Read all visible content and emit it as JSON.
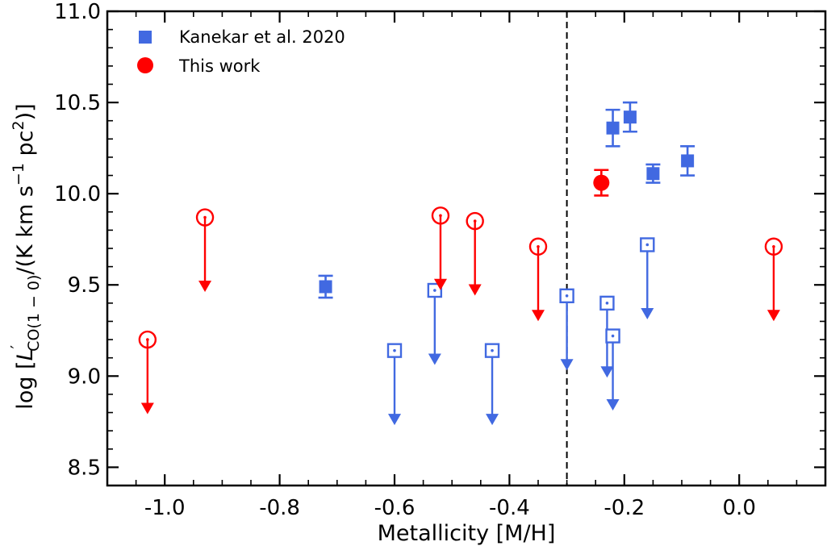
{
  "chart_data": {
    "type": "scatter",
    "xlabel": "Metallicity [M/H]",
    "ylabel_parts": {
      "prefix": "log [",
      "L": "L",
      "prime": "′",
      "sub": "CO(1 − 0)",
      "mid": "/(K km s",
      "sup1": "−1",
      "mid2": " pc",
      "sup2": "2",
      "suffix": ")]"
    },
    "xlim": [
      -1.1,
      0.15
    ],
    "ylim": [
      8.4,
      11.0
    ],
    "xticks": [
      -1.0,
      -0.8,
      -0.6,
      -0.4,
      -0.2,
      0.0
    ],
    "xtick_labels": [
      "-1.0",
      "-0.8",
      "-0.6",
      "-0.4",
      "-0.2",
      "0.0"
    ],
    "yticks": [
      8.5,
      9.0,
      9.5,
      10.0,
      10.5,
      11.0
    ],
    "ytick_labels": [
      "8.5",
      "9.0",
      "9.5",
      "10.0",
      "10.5",
      "11.0"
    ],
    "vline_x": -0.3,
    "legend": {
      "placement": "top-left",
      "entries": [
        {
          "label": "Kanekar et al. 2020",
          "marker": "square",
          "color": "#4169e1"
        },
        {
          "label": "This work",
          "marker": "circle",
          "color": "#ff0000"
        }
      ]
    },
    "series": [
      {
        "name": "Kanekar et al. 2020",
        "marker": "square",
        "color": "#4169e1",
        "detections": [
          {
            "x": -0.72,
            "y": 9.49,
            "yerr": 0.06
          },
          {
            "x": -0.22,
            "y": 10.36,
            "yerr": 0.1
          },
          {
            "x": -0.19,
            "y": 10.42,
            "yerr": 0.08
          },
          {
            "x": -0.15,
            "y": 10.11,
            "yerr": 0.05
          },
          {
            "x": -0.09,
            "y": 10.18,
            "yerr": 0.08
          }
        ],
        "upper_limits": [
          {
            "x": -0.6,
            "y": 9.14
          },
          {
            "x": -0.53,
            "y": 9.47
          },
          {
            "x": -0.43,
            "y": 9.14
          },
          {
            "x": -0.3,
            "y": 9.44
          },
          {
            "x": -0.23,
            "y": 9.4
          },
          {
            "x": -0.22,
            "y": 9.22
          },
          {
            "x": -0.16,
            "y": 9.72
          }
        ]
      },
      {
        "name": "This work",
        "marker": "circle",
        "color": "#ff0000",
        "detections": [
          {
            "x": -0.24,
            "y": 10.06,
            "yerr": 0.07
          }
        ],
        "upper_limits": [
          {
            "x": -1.03,
            "y": 9.2
          },
          {
            "x": -0.93,
            "y": 9.87
          },
          {
            "x": -0.52,
            "y": 9.88
          },
          {
            "x": -0.46,
            "y": 9.85
          },
          {
            "x": -0.35,
            "y": 9.71
          },
          {
            "x": 0.06,
            "y": 9.71
          }
        ]
      }
    ]
  }
}
